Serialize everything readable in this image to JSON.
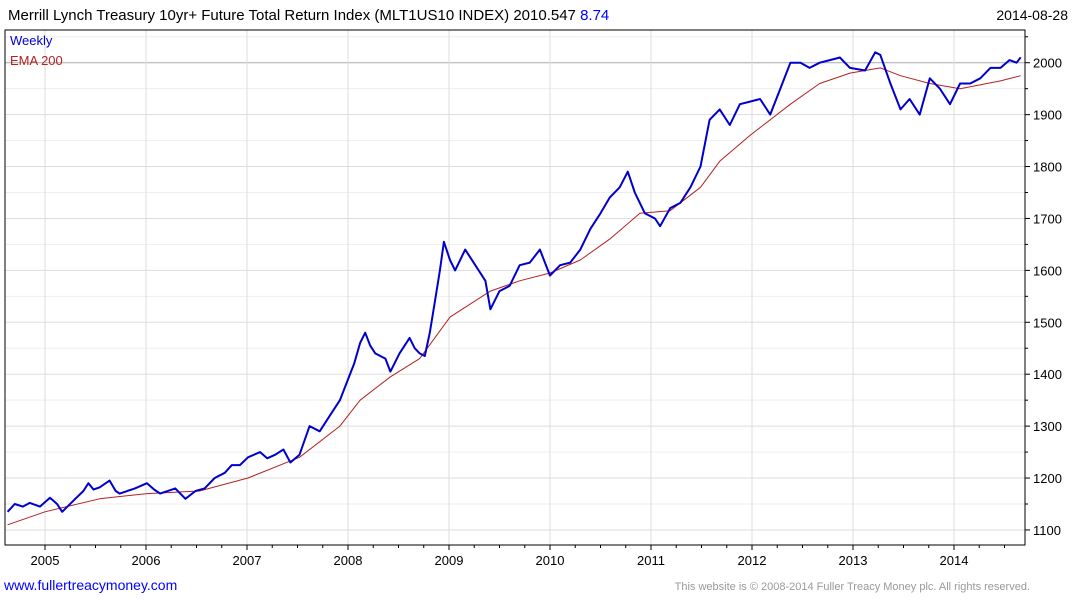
{
  "header": {
    "title": "Merrill Lynch Treasury 10yr+ Future Total Return Index (MLT1US10 INDEX) 2010.547",
    "change": "8.74",
    "date": "2014-08-28"
  },
  "footer": {
    "link": "www.fullertreacymoney.com",
    "copyright": "This website is © 2008-2014 Fuller Treacy Money plc. All rights reserved."
  },
  "colors": {
    "price": "#0000cc",
    "ema": "#b22222",
    "change": "#0000ff",
    "link": "#0000ff",
    "grid": "#dddddd",
    "copyright": "#999999"
  },
  "chart_data": {
    "type": "line",
    "title": "Merrill Lynch Treasury 10yr+ Future Total Return Index (MLT1US10 INDEX)",
    "xlim": [
      2004.604,
      2014.703
    ],
    "ylim": [
      1071,
      2063
    ],
    "x_ticks": [
      2005,
      2006,
      2007,
      2008,
      2009,
      2010,
      2011,
      2012,
      2013,
      2014
    ],
    "x_tick_labels": [
      "2005",
      "2006",
      "2007",
      "2008",
      "2009",
      "2010",
      "2011",
      "2012",
      "2013",
      "2014"
    ],
    "y_ticks": [
      1100,
      1200,
      1300,
      1400,
      1500,
      1600,
      1700,
      1800,
      1900,
      2000
    ],
    "y_tick_labels": [
      "1100",
      "1200",
      "1300",
      "1400",
      "1500",
      "1600",
      "1700",
      "1800",
      "1900",
      "2000"
    ],
    "grid": true,
    "legend_position": "top-left",
    "series": [
      {
        "name": "Weekly",
        "points": [
          [
            2004.63,
            1135
          ],
          [
            2004.7,
            1150
          ],
          [
            2004.78,
            1145
          ],
          [
            2004.85,
            1152
          ],
          [
            2004.95,
            1145
          ],
          [
            2005.05,
            1162
          ],
          [
            2005.12,
            1150
          ],
          [
            2005.17,
            1135
          ],
          [
            2005.3,
            1160
          ],
          [
            2005.38,
            1175
          ],
          [
            2005.43,
            1190
          ],
          [
            2005.48,
            1178
          ],
          [
            2005.54,
            1182
          ],
          [
            2005.64,
            1195
          ],
          [
            2005.7,
            1175
          ],
          [
            2005.74,
            1170
          ],
          [
            2005.89,
            1180
          ],
          [
            2006.01,
            1190
          ],
          [
            2006.08,
            1178
          ],
          [
            2006.14,
            1170
          ],
          [
            2006.29,
            1180
          ],
          [
            2006.39,
            1160
          ],
          [
            2006.49,
            1175
          ],
          [
            2006.58,
            1180
          ],
          [
            2006.68,
            1200
          ],
          [
            2006.78,
            1210
          ],
          [
            2006.85,
            1225
          ],
          [
            2006.93,
            1225
          ],
          [
            2007.01,
            1240
          ],
          [
            2007.13,
            1250
          ],
          [
            2007.2,
            1238
          ],
          [
            2007.28,
            1245
          ],
          [
            2007.36,
            1255
          ],
          [
            2007.43,
            1230
          ],
          [
            2007.52,
            1245
          ],
          [
            2007.62,
            1300
          ],
          [
            2007.72,
            1290
          ],
          [
            2007.82,
            1320
          ],
          [
            2007.92,
            1350
          ],
          [
            2008.0,
            1390
          ],
          [
            2008.06,
            1420
          ],
          [
            2008.12,
            1460
          ],
          [
            2008.17,
            1480
          ],
          [
            2008.22,
            1455
          ],
          [
            2008.27,
            1440
          ],
          [
            2008.37,
            1430
          ],
          [
            2008.42,
            1405
          ],
          [
            2008.51,
            1440
          ],
          [
            2008.61,
            1470
          ],
          [
            2008.66,
            1450
          ],
          [
            2008.71,
            1440
          ],
          [
            2008.76,
            1435
          ],
          [
            2008.81,
            1480
          ],
          [
            2008.86,
            1540
          ],
          [
            2008.91,
            1600
          ],
          [
            2008.95,
            1655
          ],
          [
            2009.01,
            1620
          ],
          [
            2009.06,
            1600
          ],
          [
            2009.16,
            1640
          ],
          [
            2009.26,
            1610
          ],
          [
            2009.36,
            1580
          ],
          [
            2009.41,
            1525
          ],
          [
            2009.5,
            1560
          ],
          [
            2009.6,
            1570
          ],
          [
            2009.7,
            1610
          ],
          [
            2009.8,
            1615
          ],
          [
            2009.9,
            1640
          ],
          [
            2010.0,
            1590
          ],
          [
            2010.1,
            1610
          ],
          [
            2010.2,
            1615
          ],
          [
            2010.3,
            1640
          ],
          [
            2010.4,
            1680
          ],
          [
            2010.5,
            1710
          ],
          [
            2010.59,
            1740
          ],
          [
            2010.69,
            1760
          ],
          [
            2010.77,
            1790
          ],
          [
            2010.84,
            1750
          ],
          [
            2010.94,
            1710
          ],
          [
            2011.04,
            1700
          ],
          [
            2011.09,
            1685
          ],
          [
            2011.19,
            1720
          ],
          [
            2011.29,
            1730
          ],
          [
            2011.39,
            1760
          ],
          [
            2011.49,
            1800
          ],
          [
            2011.58,
            1890
          ],
          [
            2011.68,
            1910
          ],
          [
            2011.78,
            1880
          ],
          [
            2011.88,
            1920
          ],
          [
            2011.98,
            1925
          ],
          [
            2012.08,
            1930
          ],
          [
            2012.18,
            1900
          ],
          [
            2012.28,
            1950
          ],
          [
            2012.38,
            2000
          ],
          [
            2012.48,
            2000
          ],
          [
            2012.57,
            1990
          ],
          [
            2012.67,
            2000
          ],
          [
            2012.77,
            2005
          ],
          [
            2012.87,
            2010
          ],
          [
            2012.97,
            1990
          ],
          [
            2013.12,
            1985
          ],
          [
            2013.22,
            2020
          ],
          [
            2013.27,
            2015
          ],
          [
            2013.37,
            1960
          ],
          [
            2013.47,
            1910
          ],
          [
            2013.56,
            1930
          ],
          [
            2013.66,
            1900
          ],
          [
            2013.76,
            1970
          ],
          [
            2013.86,
            1950
          ],
          [
            2013.96,
            1920
          ],
          [
            2014.06,
            1960
          ],
          [
            2014.16,
            1960
          ],
          [
            2014.26,
            1970
          ],
          [
            2014.36,
            1990
          ],
          [
            2014.46,
            1990
          ],
          [
            2014.55,
            2005
          ],
          [
            2014.62,
            2000
          ],
          [
            2014.66,
            2010.5
          ]
        ]
      },
      {
        "name": "EMA 200",
        "points": [
          [
            2004.63,
            1110
          ],
          [
            2005.0,
            1135
          ],
          [
            2005.54,
            1160
          ],
          [
            2006.01,
            1170
          ],
          [
            2006.53,
            1175
          ],
          [
            2007.01,
            1200
          ],
          [
            2007.52,
            1240
          ],
          [
            2007.92,
            1300
          ],
          [
            2008.12,
            1350
          ],
          [
            2008.42,
            1395
          ],
          [
            2008.71,
            1430
          ],
          [
            2009.01,
            1510
          ],
          [
            2009.41,
            1560
          ],
          [
            2009.7,
            1580
          ],
          [
            2010.0,
            1595
          ],
          [
            2010.3,
            1620
          ],
          [
            2010.59,
            1660
          ],
          [
            2010.89,
            1710
          ],
          [
            2011.19,
            1715
          ],
          [
            2011.49,
            1760
          ],
          [
            2011.68,
            1810
          ],
          [
            2011.98,
            1860
          ],
          [
            2012.38,
            1920
          ],
          [
            2012.67,
            1960
          ],
          [
            2012.97,
            1980
          ],
          [
            2013.27,
            1990
          ],
          [
            2013.47,
            1975
          ],
          [
            2013.76,
            1960
          ],
          [
            2014.06,
            1950
          ],
          [
            2014.46,
            1965
          ],
          [
            2014.66,
            1975
          ]
        ]
      }
    ]
  }
}
